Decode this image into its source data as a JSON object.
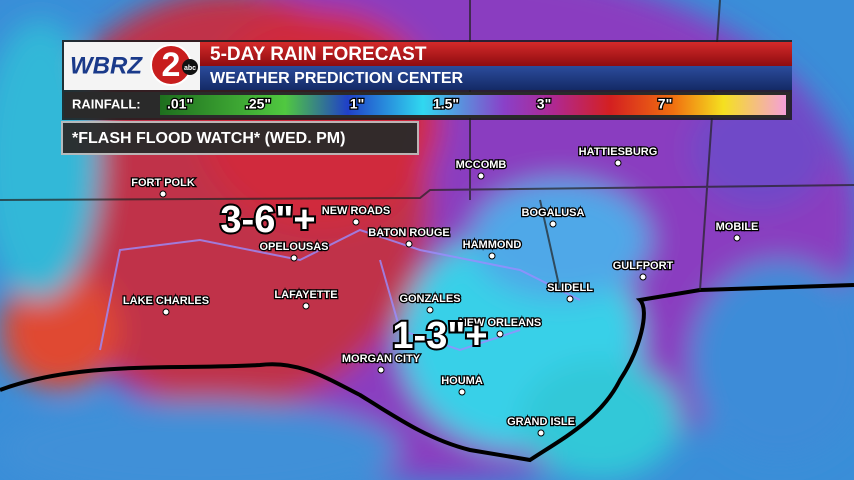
{
  "logo": {
    "call_sign": "WBRZ",
    "channel": "2",
    "network": "abc"
  },
  "header": {
    "title": "5-DAY RAIN FORECAST",
    "subtitle": "WEATHER PREDICTION CENTER"
  },
  "legend": {
    "label": "RAINFALL:",
    "stops": [
      ".01\"",
      ".25\"",
      "1\"",
      "1.5\"",
      "3\"",
      "7\""
    ]
  },
  "alert": "*FLASH FLOOD WATCH* (WED. PM)",
  "cities": [
    "FORT POLK",
    "NEW ROADS",
    "OPELOUSAS",
    "BATON ROUGE",
    "MCCOMB",
    "HATTIESBURG",
    "BOGALUSA",
    "HAMMOND",
    "MOBILE",
    "GULFPORT",
    "SLIDELL",
    "GONZALES",
    "LAFAYETTE",
    "LAKE CHARLES",
    "NEW ORLEANS",
    "MORGAN CITY",
    "HOUMA",
    "GRAND ISLE"
  ],
  "amounts": [
    "3-6\"+",
    "1-3\"+"
  ]
}
